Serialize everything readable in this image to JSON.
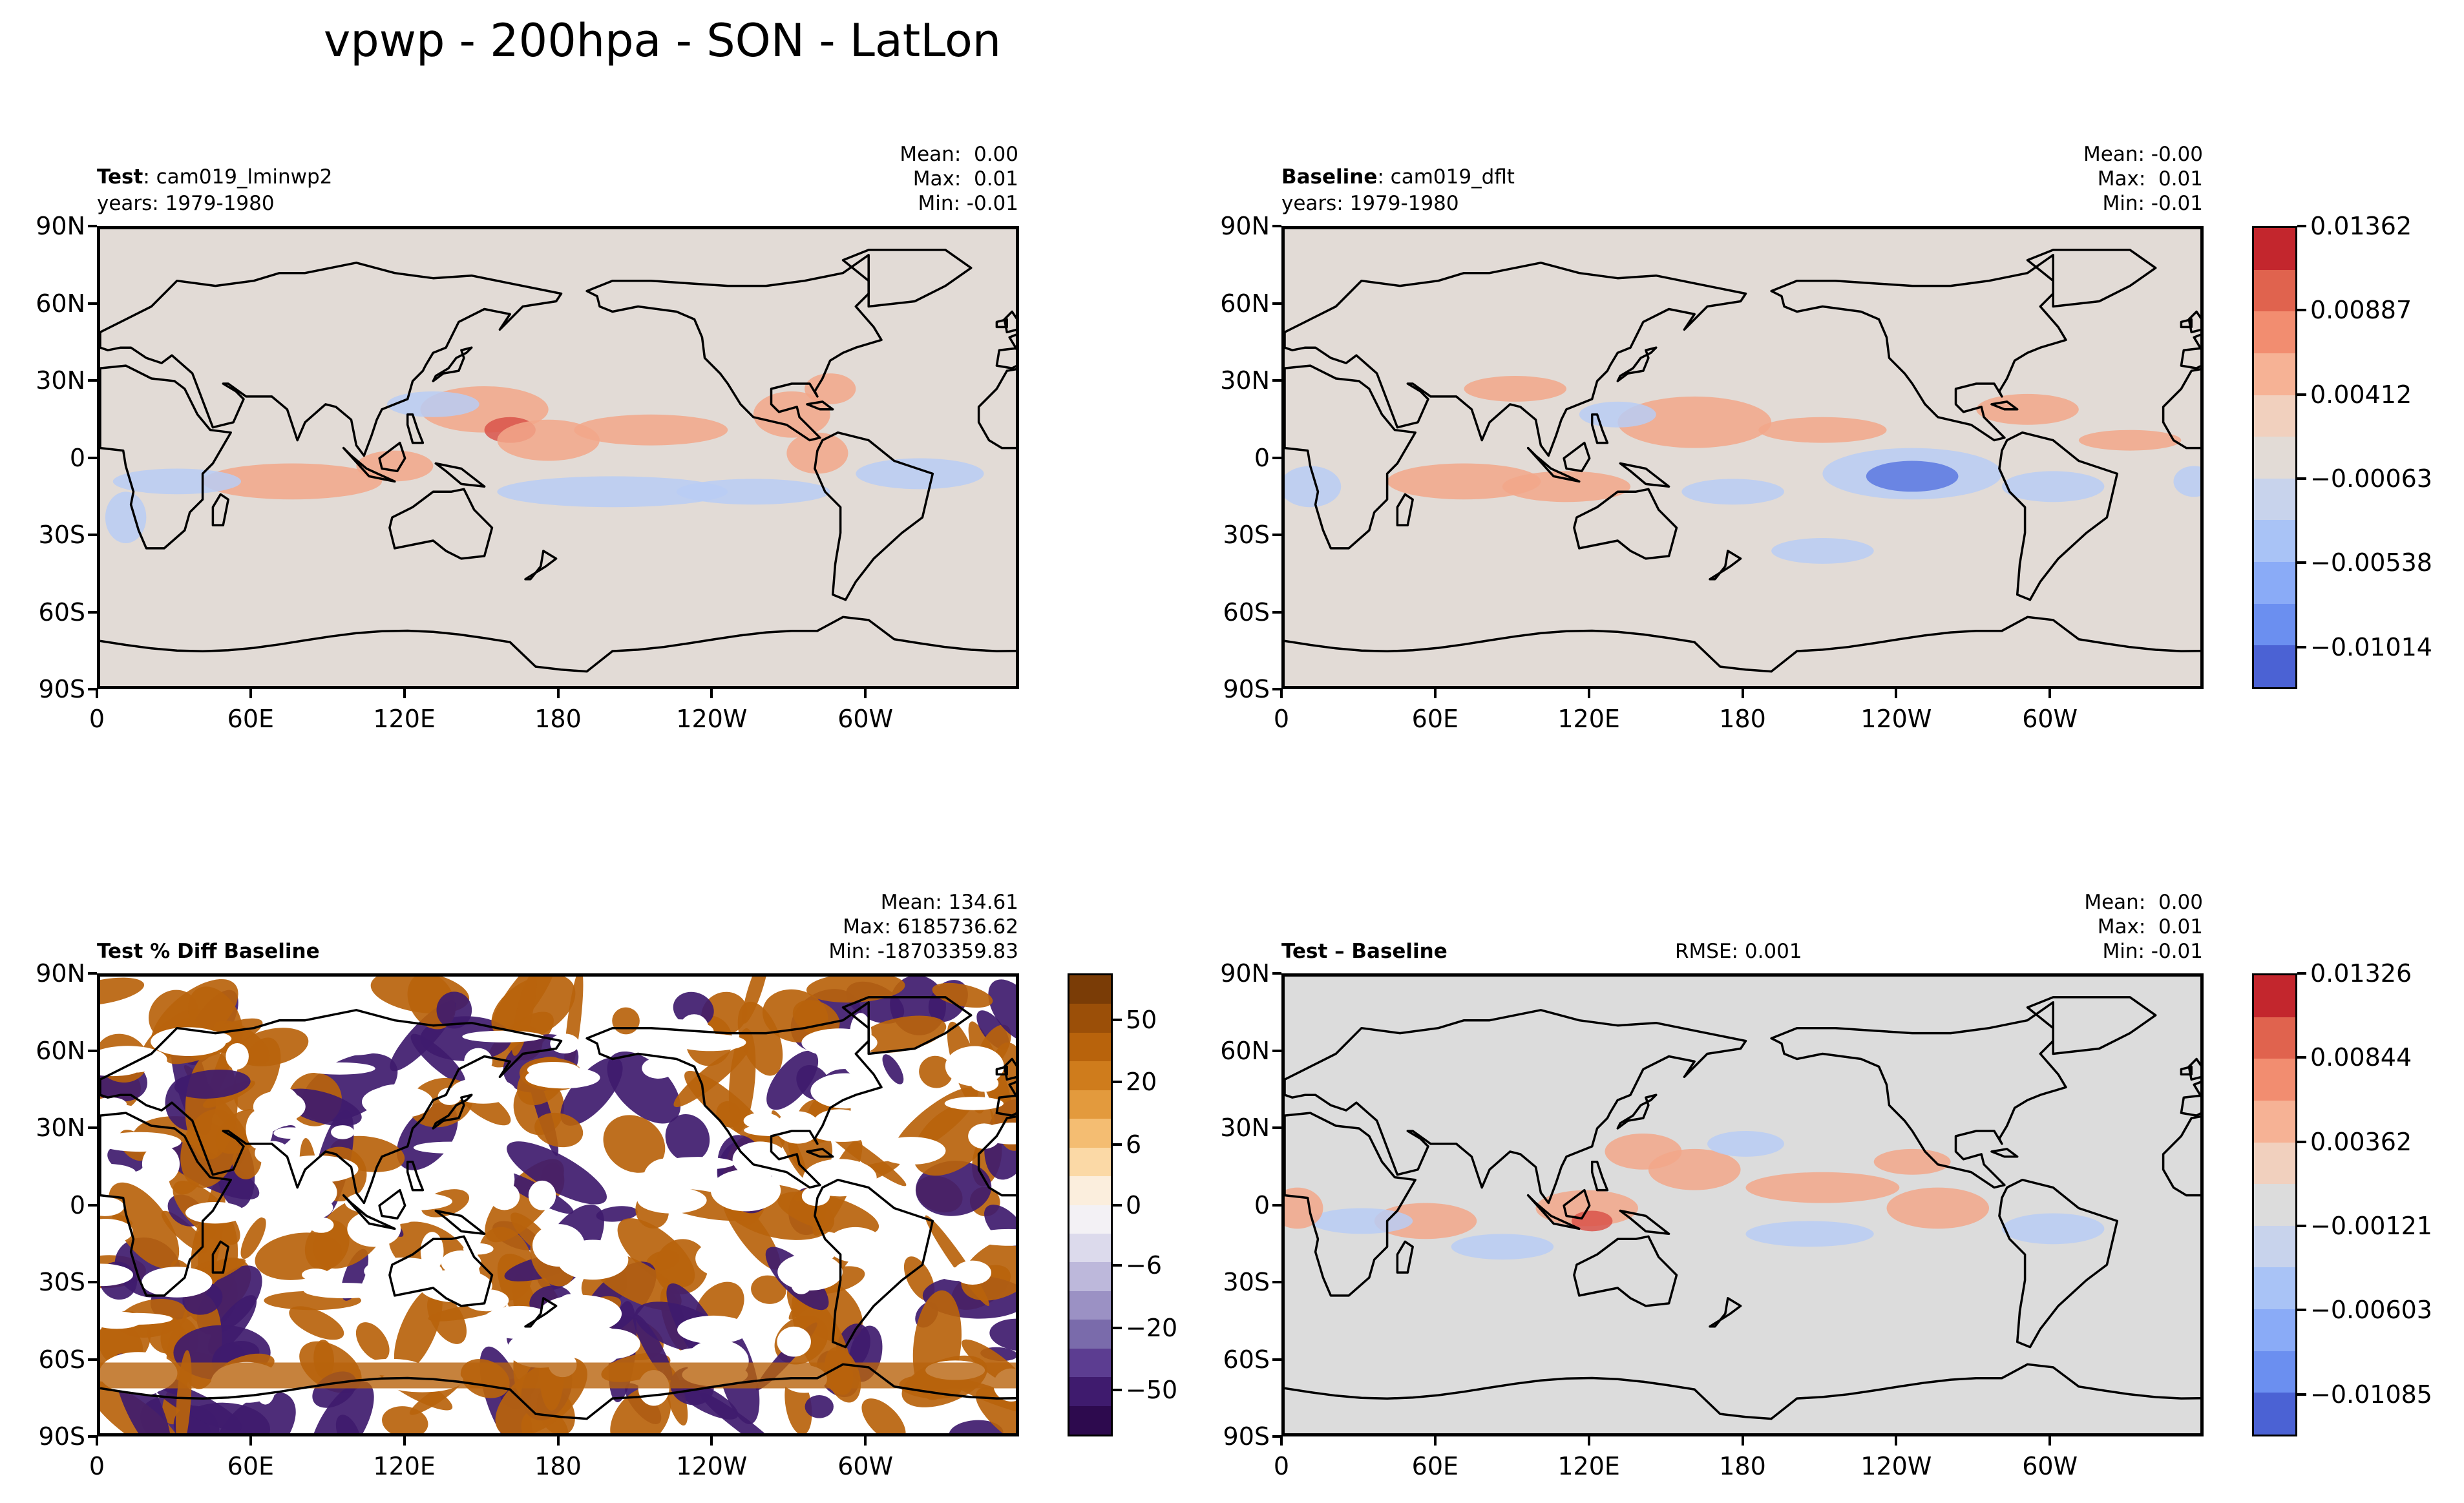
{
  "figure_title": "vpwp - 200hpa - SON - LatLon",
  "panels": {
    "test": {
      "label_bold": "Test",
      "label_rest": ": cam019_lminwp2",
      "years": "years: 1979-1980",
      "stats": [
        "Mean:  0.00",
        "Max:  0.01",
        "Min: -0.01"
      ]
    },
    "baseline": {
      "label_bold": "Baseline",
      "label_rest": ": cam019_dflt",
      "years": "years: 1979-1980",
      "stats": [
        "Mean: -0.00",
        "Max:  0.01",
        "Min: -0.01"
      ]
    },
    "pctdiff": {
      "label_bold": "Test % Diff Baseline",
      "stats": [
        "Mean: 134.61",
        "Max: 6185736.62",
        "Min: -18703359.83"
      ]
    },
    "diff": {
      "label_bold": "Test – Baseline",
      "rmse": "RMSE: 0.001",
      "stats": [
        "Mean:  0.00",
        "Max:  0.01",
        "Min: -0.01"
      ]
    }
  },
  "axes": {
    "lat_ticks": [
      "90N",
      "60N",
      "30N",
      "0",
      "30S",
      "60S",
      "90S"
    ],
    "lon_ticks": [
      "0",
      "60E",
      "120E",
      "180",
      "120W",
      "60W"
    ]
  },
  "colorbars": {
    "main": {
      "labels": [
        "0.01362",
        "0.00887",
        "0.00412",
        "−0.00063",
        "−0.00538",
        "−0.01014"
      ],
      "colors": [
        "#c3262d",
        "#e0634e",
        "#f28d70",
        "#f6b295",
        "#f1d0be",
        "#e2dbd6",
        "#c8d3ec",
        "#a9c3f6",
        "#8aabf7",
        "#6b8ff0",
        "#4b62d4"
      ]
    },
    "pct": {
      "labels": [
        "50",
        "20",
        "6",
        "0",
        "−6",
        "−20",
        "−50"
      ],
      "colors": [
        "#7a3c06",
        "#9b4f08",
        "#b8630c",
        "#cf7c1c",
        "#e39a3d",
        "#f4bd72",
        "#fbd9a6",
        "#fbeedd",
        "#f3f1f5",
        "#dcdaec",
        "#bdb8db",
        "#9b91c4",
        "#7a6bab",
        "#5c3d91",
        "#3f1b6e",
        "#2d0a4e"
      ]
    },
    "diff": {
      "labels": [
        "0.01326",
        "0.00844",
        "0.00362",
        "−0.00121",
        "−0.00603",
        "−0.01085"
      ],
      "colors": [
        "#c3262d",
        "#e0634e",
        "#f28d70",
        "#f6b295",
        "#f1d0be",
        "#dcdcdc",
        "#c8d3ec",
        "#a9c3f6",
        "#8aabf7",
        "#6b8ff0",
        "#4b62d4"
      ]
    }
  },
  "map_colors": {
    "test_bg": "#e2dbd6",
    "diff_bg": "#dcdcdc",
    "pct_bg": "#ffffff",
    "positive": "#f2a78a",
    "positive_strong": "#d9534a",
    "negative": "#b9cdf4",
    "negative_strong": "#5a78e0",
    "pct_orange": "#b8630c",
    "pct_purple": "#3f1b6e",
    "coast": "#000000"
  },
  "chart_data": [
    {
      "type": "heatmap",
      "title": "Test: cam019_lminwp2",
      "projection": "latlon",
      "xlim": [
        0,
        360
      ],
      "ylim": [
        -90,
        90
      ],
      "mean": 0.0,
      "max": 0.01,
      "min": -0.01
    },
    {
      "type": "heatmap",
      "title": "Baseline: cam019_dflt",
      "projection": "latlon",
      "xlim": [
        0,
        360
      ],
      "ylim": [
        -90,
        90
      ],
      "mean": -0.0,
      "max": 0.01,
      "min": -0.01
    },
    {
      "type": "heatmap",
      "title": "Test % Diff Baseline",
      "projection": "latlon",
      "xlim": [
        0,
        360
      ],
      "ylim": [
        -90,
        90
      ],
      "mean": 134.61,
      "max": 6185736.62,
      "min": -18703359.83
    },
    {
      "type": "heatmap",
      "title": "Test – Baseline",
      "projection": "latlon",
      "xlim": [
        0,
        360
      ],
      "ylim": [
        -90,
        90
      ],
      "mean": 0.0,
      "max": 0.01,
      "min": -0.01,
      "rmse": 0.001
    }
  ]
}
